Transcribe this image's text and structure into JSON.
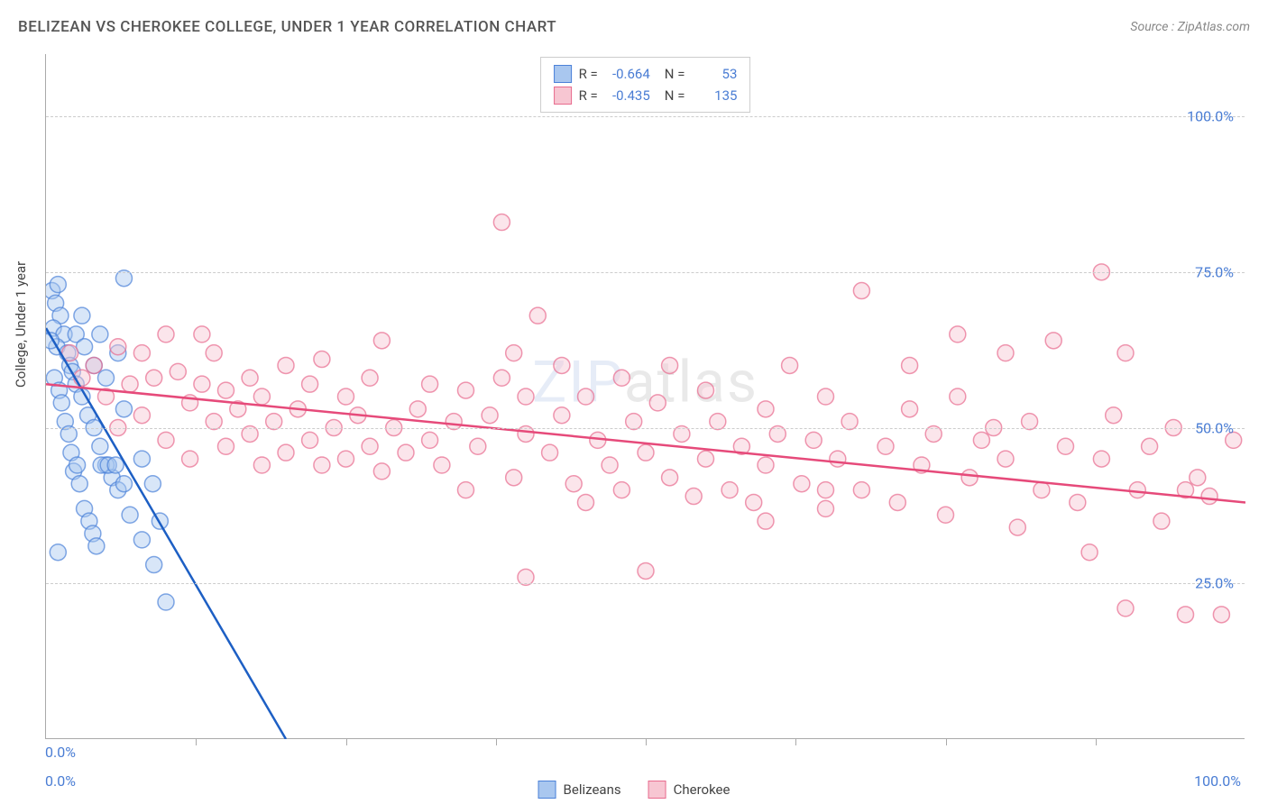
{
  "title": "BELIZEAN VS CHEROKEE COLLEGE, UNDER 1 YEAR CORRELATION CHART",
  "source": "Source : ZipAtlas.com",
  "ylabel": "College, Under 1 year",
  "watermark_a": "ZIP",
  "watermark_b": "atlas",
  "chart": {
    "type": "scatter",
    "xlim": [
      0,
      100
    ],
    "ylim": [
      0,
      110
    ],
    "y_ticks": [
      25,
      50,
      75,
      100
    ],
    "y_tick_labels": [
      "25.0%",
      "50.0%",
      "75.0%",
      "100.0%"
    ],
    "x_axis_min_label": "0.0%",
    "x_axis_max_label": "100.0%",
    "y_axis_min_label": "0.0%",
    "x_tick_positions": [
      12.5,
      25,
      37.5,
      50,
      62.5,
      75,
      87.5
    ],
    "background_color": "#ffffff",
    "grid_color": "#cccccc",
    "axis_color": "#aaaaaa",
    "marker_radius": 9,
    "marker_opacity": 0.45,
    "marker_stroke_width": 1.5,
    "trendline_width": 2.5
  },
  "series": [
    {
      "name": "Belizeans",
      "fill": "#a9c7ef",
      "stroke": "#4b81d8",
      "trend_color": "#1d5fc4",
      "R": "-0.664",
      "N": "53",
      "trend": {
        "x1": 0,
        "y1": 66,
        "x2": 20,
        "y2": 0
      },
      "points": [
        [
          0.5,
          72
        ],
        [
          0.8,
          70
        ],
        [
          1.0,
          73
        ],
        [
          1.2,
          68
        ],
        [
          0.6,
          66
        ],
        [
          1.5,
          65
        ],
        [
          0.9,
          63
        ],
        [
          1.8,
          62
        ],
        [
          2.0,
          60
        ],
        [
          0.4,
          64
        ],
        [
          2.2,
          59
        ],
        [
          0.7,
          58
        ],
        [
          2.5,
          57
        ],
        [
          1.1,
          56
        ],
        [
          6.5,
          74
        ],
        [
          3.0,
          55
        ],
        [
          1.3,
          54
        ],
        [
          3.5,
          52
        ],
        [
          1.6,
          51
        ],
        [
          4.0,
          50
        ],
        [
          1.9,
          49
        ],
        [
          4.5,
          47
        ],
        [
          2.1,
          46
        ],
        [
          5.0,
          44
        ],
        [
          2.3,
          43
        ],
        [
          5.5,
          42
        ],
        [
          2.6,
          44
        ],
        [
          6.0,
          40
        ],
        [
          2.8,
          41
        ],
        [
          6.5,
          41
        ],
        [
          3.2,
          37
        ],
        [
          7.0,
          36
        ],
        [
          3.6,
          35
        ],
        [
          8.9,
          41
        ],
        [
          3.9,
          33
        ],
        [
          8.0,
          32
        ],
        [
          4.2,
          31
        ],
        [
          1.0,
          30
        ],
        [
          4.6,
          44
        ],
        [
          9.0,
          28
        ],
        [
          5.2,
          44
        ],
        [
          10.0,
          22
        ],
        [
          5.8,
          44
        ],
        [
          2.5,
          65
        ],
        [
          3.2,
          63
        ],
        [
          4.0,
          60
        ],
        [
          5.0,
          58
        ],
        [
          6.5,
          53
        ],
        [
          8.0,
          45
        ],
        [
          9.5,
          35
        ],
        [
          3.0,
          68
        ],
        [
          4.5,
          65
        ],
        [
          6.0,
          62
        ]
      ]
    },
    {
      "name": "Cherokee",
      "fill": "#f7c6d2",
      "stroke": "#e86b8e",
      "trend_color": "#e64a7a",
      "R": "-0.435",
      "N": "135",
      "trend": {
        "x1": 0,
        "y1": 57,
        "x2": 100,
        "y2": 38
      },
      "points": [
        [
          2,
          62
        ],
        [
          3,
          58
        ],
        [
          4,
          60
        ],
        [
          5,
          55
        ],
        [
          6,
          63
        ],
        [
          6,
          50
        ],
        [
          7,
          57
        ],
        [
          8,
          52
        ],
        [
          8,
          62
        ],
        [
          9,
          58
        ],
        [
          10,
          48
        ],
        [
          10,
          65
        ],
        [
          11,
          59
        ],
        [
          12,
          54
        ],
        [
          12,
          45
        ],
        [
          13,
          57
        ],
        [
          14,
          51
        ],
        [
          14,
          62
        ],
        [
          15,
          47
        ],
        [
          15,
          56
        ],
        [
          16,
          53
        ],
        [
          17,
          49
        ],
        [
          17,
          58
        ],
        [
          18,
          44
        ],
        [
          18,
          55
        ],
        [
          19,
          51
        ],
        [
          20,
          60
        ],
        [
          20,
          46
        ],
        [
          21,
          53
        ],
        [
          22,
          48
        ],
        [
          22,
          57
        ],
        [
          23,
          44
        ],
        [
          23,
          61
        ],
        [
          24,
          50
        ],
        [
          25,
          45
        ],
        [
          25,
          55
        ],
        [
          26,
          52
        ],
        [
          27,
          47
        ],
        [
          27,
          58
        ],
        [
          28,
          43
        ],
        [
          28,
          64
        ],
        [
          29,
          50
        ],
        [
          30,
          46
        ],
        [
          13,
          65
        ],
        [
          31,
          53
        ],
        [
          32,
          48
        ],
        [
          32,
          57
        ],
        [
          33,
          44
        ],
        [
          34,
          51
        ],
        [
          35,
          40
        ],
        [
          35,
          56
        ],
        [
          36,
          47
        ],
        [
          37,
          52
        ],
        [
          38,
          83
        ],
        [
          38,
          58
        ],
        [
          39,
          42
        ],
        [
          40,
          49
        ],
        [
          40,
          55
        ],
        [
          41,
          68
        ],
        [
          42,
          46
        ],
        [
          43,
          52
        ],
        [
          43,
          60
        ],
        [
          44,
          41
        ],
        [
          45,
          38
        ],
        [
          45,
          55
        ],
        [
          46,
          48
        ],
        [
          47,
          44
        ],
        [
          48,
          58
        ],
        [
          48,
          40
        ],
        [
          49,
          51
        ],
        [
          50,
          46
        ],
        [
          50,
          27
        ],
        [
          51,
          54
        ],
        [
          52,
          42
        ],
        [
          53,
          49
        ],
        [
          54,
          39
        ],
        [
          55,
          56
        ],
        [
          55,
          45
        ],
        [
          56,
          51
        ],
        [
          57,
          40
        ],
        [
          58,
          47
        ],
        [
          59,
          38
        ],
        [
          60,
          53
        ],
        [
          60,
          44
        ],
        [
          61,
          49
        ],
        [
          62,
          60
        ],
        [
          63,
          41
        ],
        [
          64,
          48
        ],
        [
          65,
          37
        ],
        [
          65,
          55
        ],
        [
          66,
          45
        ],
        [
          67,
          51
        ],
        [
          68,
          40
        ],
        [
          68,
          72
        ],
        [
          70,
          47
        ],
        [
          71,
          38
        ],
        [
          72,
          53
        ],
        [
          73,
          44
        ],
        [
          74,
          49
        ],
        [
          75,
          36
        ],
        [
          76,
          55
        ],
        [
          76,
          65
        ],
        [
          77,
          42
        ],
        [
          78,
          48
        ],
        [
          79,
          50
        ],
        [
          80,
          45
        ],
        [
          81,
          34
        ],
        [
          82,
          51
        ],
        [
          83,
          40
        ],
        [
          84,
          64
        ],
        [
          85,
          47
        ],
        [
          86,
          38
        ],
        [
          87,
          30
        ],
        [
          88,
          45
        ],
        [
          89,
          52
        ],
        [
          90,
          21
        ],
        [
          91,
          40
        ],
        [
          92,
          47
        ],
        [
          93,
          35
        ],
        [
          94,
          50
        ],
        [
          95,
          20
        ],
        [
          96,
          42
        ],
        [
          97,
          39
        ],
        [
          98,
          20
        ],
        [
          99,
          48
        ],
        [
          88,
          75
        ],
        [
          40,
          26
        ],
        [
          52,
          60
        ],
        [
          60,
          35
        ],
        [
          65,
          40
        ],
        [
          72,
          60
        ],
        [
          80,
          62
        ],
        [
          90,
          62
        ],
        [
          95,
          40
        ],
        [
          39,
          62
        ]
      ]
    }
  ]
}
